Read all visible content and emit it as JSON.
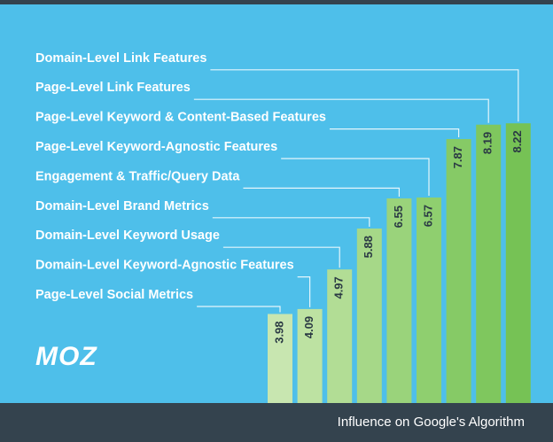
{
  "chart_data": {
    "type": "bar",
    "categories": [
      "Page-Level Social Metrics",
      "Domain-Level Keyword-Agnostic Features",
      "Domain-Level Keyword Usage",
      "Domain-Level Brand Metrics",
      "Engagement & Traffic/Query Data",
      "Page-Level Keyword-Agnostic Features",
      "Page-Level Keyword & Content-Based Features",
      "Page-Level Link Features",
      "Domain-Level Link Features"
    ],
    "values": [
      3.98,
      4.09,
      4.97,
      5.88,
      6.55,
      6.57,
      7.87,
      8.19,
      8.22
    ],
    "colors": [
      "#c8e6b0",
      "#bde2a2",
      "#b2dd95",
      "#a6d888",
      "#9ad37b",
      "#8fcf6f",
      "#86ca66",
      "#7fc75e",
      "#76c255"
    ],
    "ylim": [
      2,
      8.5
    ],
    "xlabel": "Influence on Google's Algorithm",
    "logo": "MOZ"
  }
}
